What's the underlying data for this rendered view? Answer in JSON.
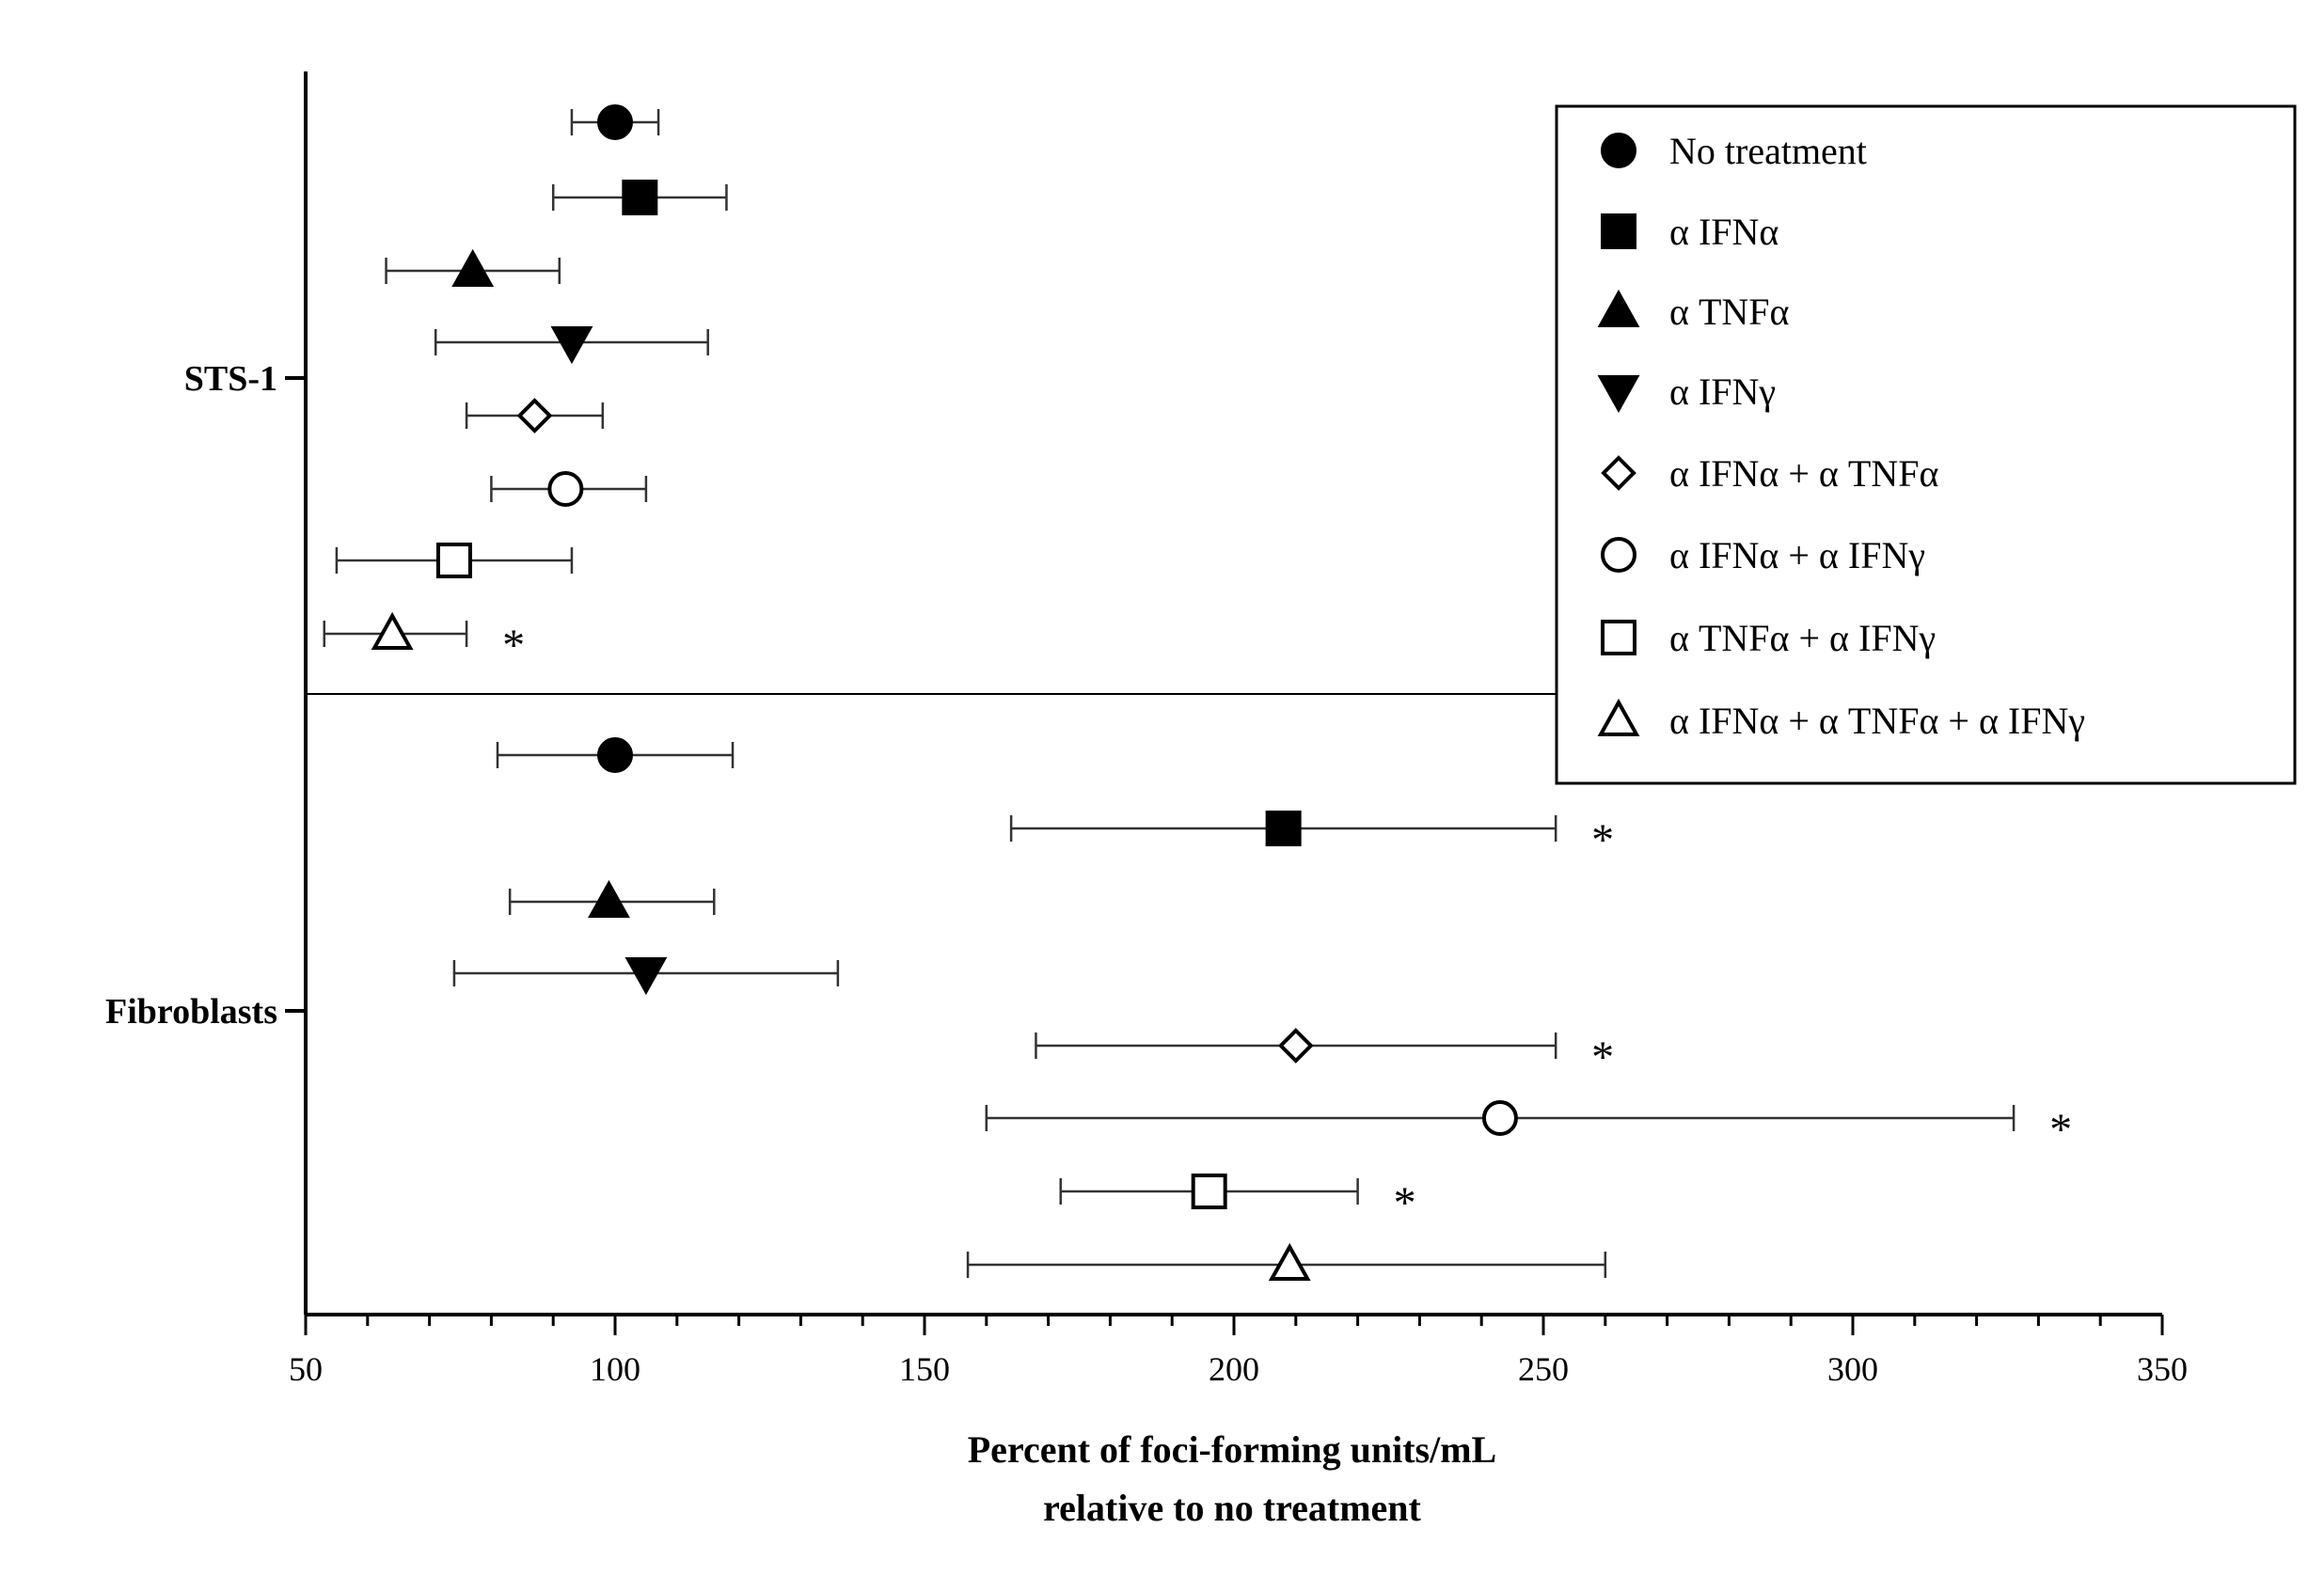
{
  "chart_data": {
    "type": "scatter",
    "orientation": "horizontal",
    "xlabel_line1": "Percent of foci-forming units/mL",
    "xlabel_line2": "relative to no treatment",
    "xlim": [
      50,
      350
    ],
    "xticks": [
      "50",
      "100",
      "150",
      "200",
      "250",
      "300",
      "350"
    ],
    "xtick_values": [
      50,
      100,
      150,
      200,
      250,
      300,
      350
    ],
    "minor_tick_step": 10,
    "groups": [
      "STS-1",
      "Fibroblasts"
    ],
    "legend_position": "top-right",
    "series": [
      {
        "name": "No treatment",
        "marker": "circle-filled"
      },
      {
        "name": "α IFNα",
        "marker": "square-filled"
      },
      {
        "name": "α TNFα",
        "marker": "triangle-up-filled"
      },
      {
        "name": "α IFNγ",
        "marker": "triangle-down-filled"
      },
      {
        "name": "α IFNα + α TNFα",
        "marker": "diamond-open"
      },
      {
        "name": "α IFNα + α IFNγ",
        "marker": "circle-open"
      },
      {
        "name": "α TNFα + α IFNγ",
        "marker": "square-open"
      },
      {
        "name": "α IFNα + α TNFα + α IFNγ",
        "marker": "triangle-up-open"
      }
    ],
    "points": [
      {
        "group": "STS-1",
        "series": 0,
        "value": 100,
        "err_low": 93,
        "err_high": 107,
        "significant": false
      },
      {
        "group": "STS-1",
        "series": 1,
        "value": 104,
        "err_low": 90,
        "err_high": 118,
        "significant": false
      },
      {
        "group": "STS-1",
        "series": 2,
        "value": 77,
        "err_low": 63,
        "err_high": 91,
        "significant": false
      },
      {
        "group": "STS-1",
        "series": 3,
        "value": 93,
        "err_low": 71,
        "err_high": 115,
        "significant": false
      },
      {
        "group": "STS-1",
        "series": 4,
        "value": 87,
        "err_low": 76,
        "err_high": 98,
        "significant": false
      },
      {
        "group": "STS-1",
        "series": 5,
        "value": 92,
        "err_low": 80,
        "err_high": 105,
        "significant": false
      },
      {
        "group": "STS-1",
        "series": 6,
        "value": 74,
        "err_low": 55,
        "err_high": 93,
        "significant": false
      },
      {
        "group": "STS-1",
        "series": 7,
        "value": 64,
        "err_low": 53,
        "err_high": 76,
        "significant": true
      },
      {
        "group": "Fibroblasts",
        "series": 0,
        "value": 100,
        "err_low": 81,
        "err_high": 119,
        "significant": false
      },
      {
        "group": "Fibroblasts",
        "series": 1,
        "value": 208,
        "err_low": 164,
        "err_high": 252,
        "significant": true
      },
      {
        "group": "Fibroblasts",
        "series": 2,
        "value": 99,
        "err_low": 83,
        "err_high": 116,
        "significant": false
      },
      {
        "group": "Fibroblasts",
        "series": 3,
        "value": 105,
        "err_low": 74,
        "err_high": 136,
        "significant": false
      },
      {
        "group": "Fibroblasts",
        "series": 4,
        "value": 210,
        "err_low": 168,
        "err_high": 252,
        "significant": true
      },
      {
        "group": "Fibroblasts",
        "series": 5,
        "value": 243,
        "err_low": 160,
        "err_high": 326,
        "significant": true
      },
      {
        "group": "Fibroblasts",
        "series": 6,
        "value": 196,
        "err_low": 172,
        "err_high": 220,
        "significant": true
      },
      {
        "group": "Fibroblasts",
        "series": 7,
        "value": 209,
        "err_low": 157,
        "err_high": 260,
        "significant": false
      }
    ],
    "significance_marker": "*"
  }
}
